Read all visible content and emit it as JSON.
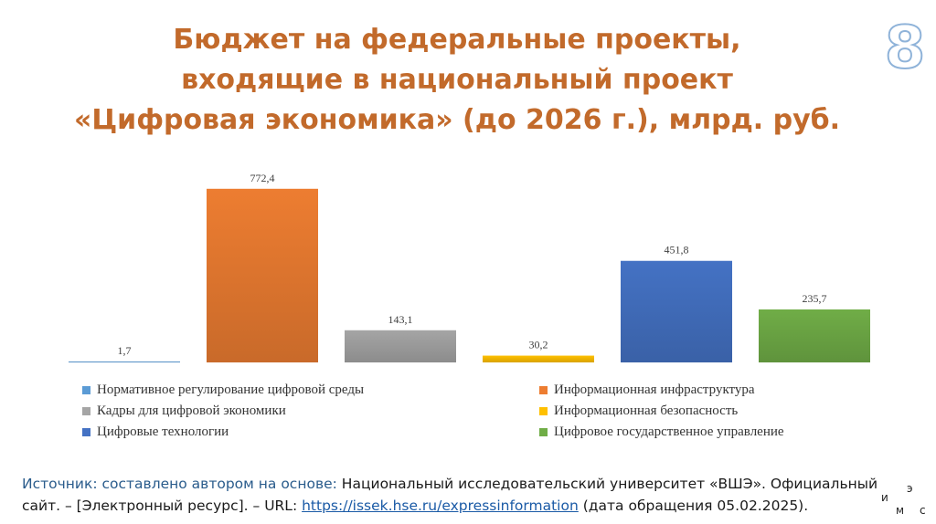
{
  "slide": {
    "title_lines": [
      "Бюджет на федеральные проекты,",
      "входящие в национальный проект",
      "«Цифровая экономика» (до 2026 г.), млрд. руб."
    ],
    "page_number": "8"
  },
  "chart_data": {
    "type": "bar",
    "categories": [
      "Нормативное регулирование цифровой среды",
      "Информационная инфраструктура",
      "Кадры для цифровой экономики",
      "Информационная безопасность",
      "Цифровые технологии",
      "Цифровое государственное управление"
    ],
    "values": [
      1.7,
      772.4,
      143.1,
      30.2,
      451.8,
      235.7
    ],
    "value_labels": [
      "1,7",
      "772,4",
      "143,1",
      "30,2",
      "451,8",
      "235,7"
    ],
    "colors": [
      "#5b9bd5",
      "#ed7d31",
      "#a5a5a5",
      "#ffc000",
      "#4472c4",
      "#70ad47"
    ],
    "ylim": [
      0,
      800
    ],
    "grid": false,
    "legend_position": "bottom"
  },
  "source": {
    "lead": "Источник: составлено автором на основе:",
    "text1": " Национальный исследовательский университет «ВШЭ». Официальный сайт. – [Электронный ресурс]. – URL: ",
    "link": "https://issek.hse.ru/expressinformation",
    "text2": " (дата обращения 05.02.2025)."
  },
  "logo": {
    "l1": "и",
    "l2": "э",
    "l3": "м",
    "l4": "с"
  }
}
